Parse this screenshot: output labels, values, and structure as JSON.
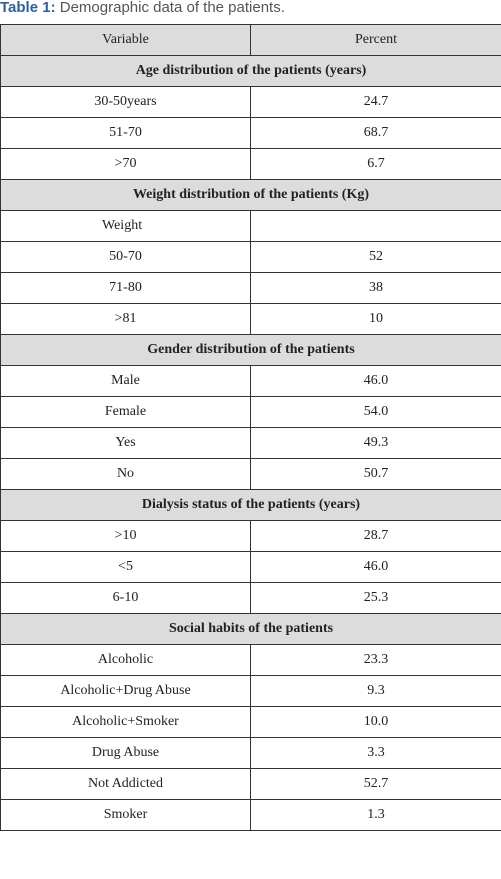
{
  "caption": {
    "label": "Table 1:",
    "text": " Demographic data of the patients."
  },
  "header": {
    "col1": "Variable",
    "col2": "Percent"
  },
  "sections": [
    {
      "title": "Age distribution of the patients (years)",
      "rows": [
        {
          "variable": "30-50years",
          "percent": "24.7"
        },
        {
          "variable": "51-70",
          "percent": "68.7"
        },
        {
          "variable": ">70",
          "percent": "6.7"
        }
      ]
    },
    {
      "title": "Weight distribution of the patients (Kg)",
      "rows": [
        {
          "variable": "Weight",
          "percent": ""
        },
        {
          "variable": "50-70",
          "percent": "52"
        },
        {
          "variable": "71-80",
          "percent": "38"
        },
        {
          "variable": ">81",
          "percent": "10"
        }
      ]
    },
    {
      "title": "Gender distribution of the patients",
      "rows": [
        {
          "variable": "Male",
          "percent": "46.0"
        },
        {
          "variable": "Female",
          "percent": "54.0"
        },
        {
          "variable": "Yes",
          "percent": "49.3"
        },
        {
          "variable": "No",
          "percent": "50.7"
        }
      ]
    },
    {
      "title": "Dialysis status of the patients (years)",
      "rows": [
        {
          "variable": ">10",
          "percent": "28.7"
        },
        {
          "variable": "<5",
          "percent": "46.0"
        },
        {
          "variable": "6-10",
          "percent": "25.3"
        }
      ]
    },
    {
      "title": "Social habits of the patients",
      "rows": [
        {
          "variable": "Alcoholic",
          "percent": "23.3"
        },
        {
          "variable": "Alcoholic+Drug Abuse",
          "percent": "9.3"
        },
        {
          "variable": "Alcoholic+Smoker",
          "percent": "10.0"
        },
        {
          "variable": "Drug Abuse",
          "percent": "3.3"
        },
        {
          "variable": "Not Addicted",
          "percent": "52.7"
        },
        {
          "variable": "Smoker",
          "percent": "1.3"
        }
      ]
    }
  ]
}
